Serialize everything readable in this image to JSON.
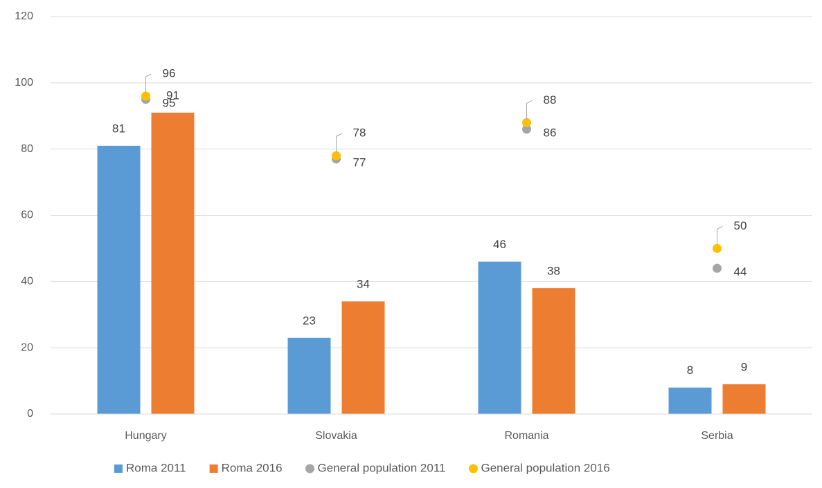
{
  "chart_data": {
    "type": "bar",
    "categories": [
      "Hungary",
      "Slovakia",
      "Romania",
      "Serbia"
    ],
    "series": [
      {
        "name": "Roma 2011",
        "type": "bar",
        "color": "#5b9bd5",
        "values": [
          81,
          23,
          46,
          8
        ]
      },
      {
        "name": "Roma 2016",
        "type": "bar",
        "color": "#ed7d31",
        "values": [
          91,
          34,
          38,
          9
        ]
      },
      {
        "name": "General population 2011",
        "type": "scatter",
        "color": "#a5a5a5",
        "values": [
          95,
          77,
          86,
          44
        ]
      },
      {
        "name": "General population 2016",
        "type": "scatter",
        "color": "#ffc000",
        "values": [
          96,
          78,
          88,
          50
        ]
      }
    ],
    "ylim": [
      0,
      120
    ],
    "yticks": [
      0,
      20,
      40,
      60,
      80,
      100,
      120
    ],
    "grid": true,
    "legend": "bottom"
  }
}
